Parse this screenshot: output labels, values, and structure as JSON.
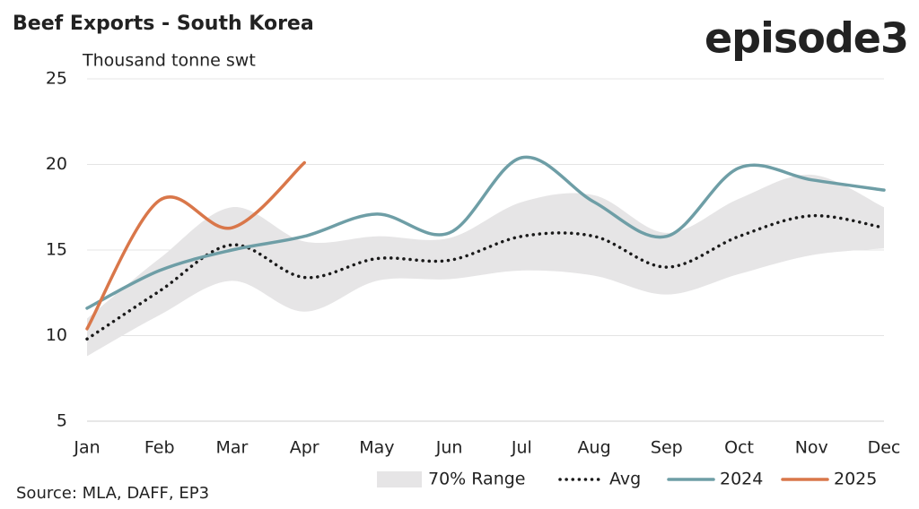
{
  "chart_data": {
    "type": "line",
    "title": "Beef Exports - South Korea",
    "logo": "episode3",
    "y_label": "Thousand tonne swt",
    "source": "Source: MLA, DAFF, EP3",
    "categories": [
      "Jan",
      "Feb",
      "Mar",
      "Apr",
      "May",
      "Jun",
      "Jul",
      "Aug",
      "Sep",
      "Oct",
      "Nov",
      "Dec"
    ],
    "ylim": [
      5,
      25
    ],
    "yticks": [
      5,
      10,
      15,
      20,
      25
    ],
    "grid": true,
    "legend": "bottom",
    "series": [
      {
        "name": "70% Range",
        "color": "#e6e5e6",
        "type": "band",
        "low": [
          8.8,
          11.2,
          13.2,
          11.4,
          13.2,
          13.3,
          13.8,
          13.5,
          12.4,
          13.6,
          14.7,
          15.1
        ],
        "high": [
          11.0,
          14.5,
          17.5,
          15.5,
          15.8,
          15.7,
          17.8,
          18.2,
          16.0,
          18.0,
          19.4,
          17.5
        ]
      },
      {
        "name": "Avg",
        "color": "#1a1a1a",
        "style": "dotted",
        "values": [
          9.8,
          12.6,
          15.3,
          13.4,
          14.5,
          14.4,
          15.8,
          15.8,
          14.0,
          15.8,
          17.0,
          16.3
        ]
      },
      {
        "name": "2024",
        "color": "#6e9ea6",
        "values": [
          11.6,
          13.8,
          15.0,
          15.8,
          17.1,
          16.0,
          20.4,
          17.8,
          15.8,
          19.8,
          19.1,
          18.5
        ]
      },
      {
        "name": "2025",
        "color": "#d9774a",
        "values": [
          10.4,
          17.9,
          16.3,
          20.1,
          null,
          null,
          null,
          null,
          null,
          null,
          null,
          null
        ]
      }
    ]
  }
}
